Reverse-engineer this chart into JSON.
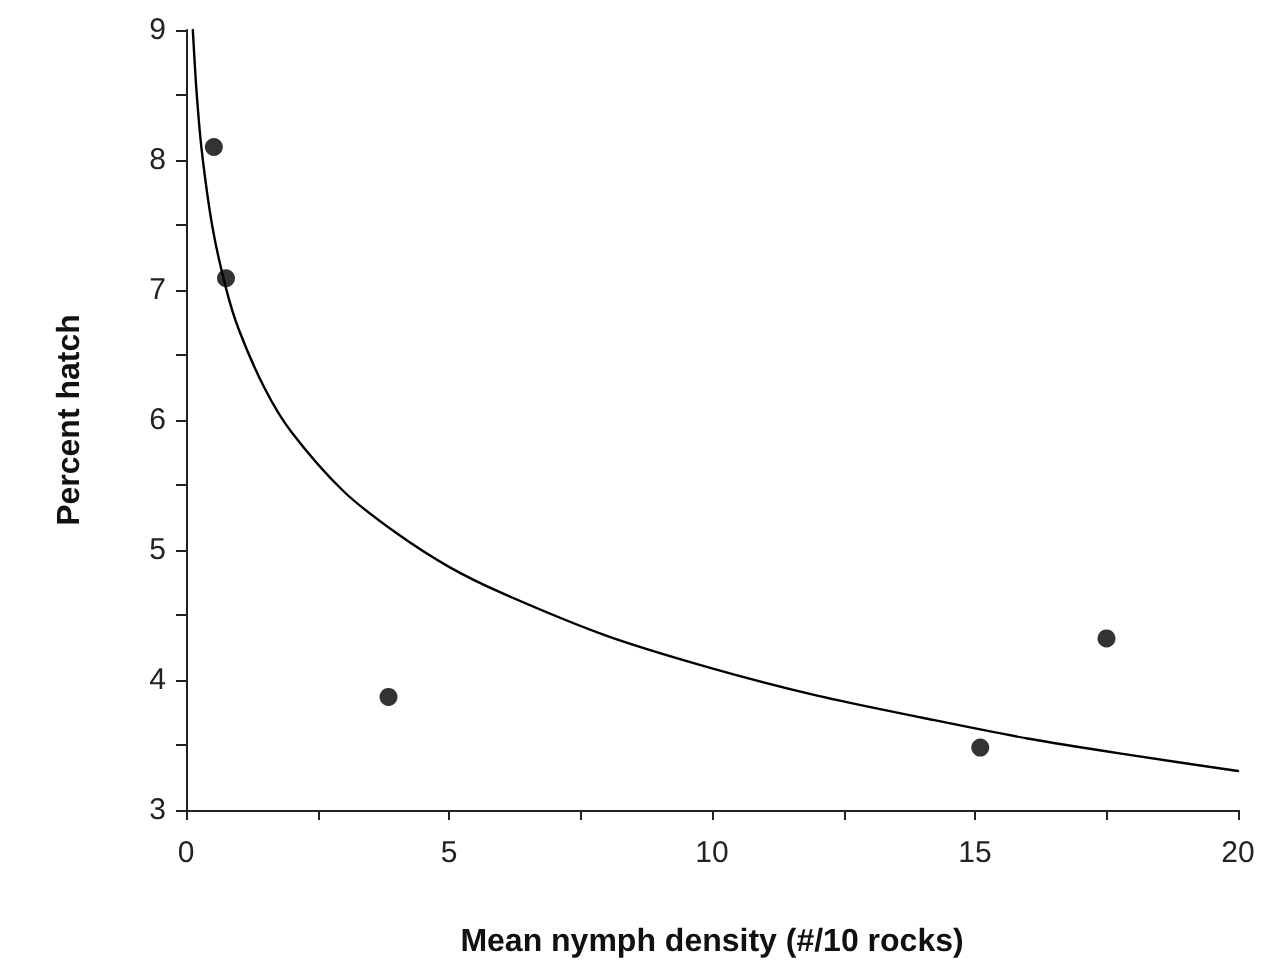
{
  "chart_data": {
    "type": "scatter",
    "xlabel": "Mean nymph density (#/10 rocks)",
    "ylabel": "Percent hatch",
    "xlim": [
      0,
      20
    ],
    "xticks": [
      0,
      {
        "value": 2.5,
        "label": null
      },
      5,
      {
        "value": 7.5,
        "label": null
      },
      10,
      {
        "value": 12.5,
        "label": null
      },
      15,
      {
        "value": 17.5,
        "label": null
      },
      20
    ],
    "ylim": [
      3,
      9
    ],
    "yticks": [
      3,
      {
        "value": 3.5,
        "label": null
      },
      4,
      {
        "value": 4.5,
        "label": null
      },
      5,
      {
        "value": 5.5,
        "label": null
      },
      6,
      {
        "value": 6.5,
        "label": null
      },
      7,
      {
        "value": 7.5,
        "label": null
      },
      8,
      {
        "value": 8.5,
        "label": null
      },
      9
    ],
    "series": [
      {
        "marker": "circle",
        "color": "#000000",
        "x": [
          0.53,
          0.76,
          3.85,
          15.1,
          17.5
        ],
        "values": [
          8.1,
          7.09,
          3.87,
          3.48,
          4.32
        ]
      },
      {
        "type": "line",
        "color": "#000000",
        "line_style": "solid",
        "x": [
          0.13,
          0.2,
          0.3,
          0.5,
          0.75,
          1,
          1.5,
          2,
          3,
          4,
          5,
          6,
          8,
          10,
          12,
          14,
          16,
          18,
          20
        ],
        "values": [
          9.0,
          8.53,
          8.07,
          7.49,
          7.03,
          6.7,
          6.24,
          5.91,
          5.45,
          5.13,
          4.87,
          4.67,
          4.34,
          4.09,
          3.88,
          3.71,
          3.55,
          3.42,
          3.3
        ]
      }
    ]
  }
}
